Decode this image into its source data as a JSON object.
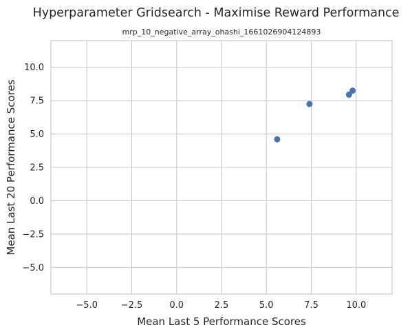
{
  "figure": {
    "suptitle": "Hyperparameter Gridsearch - Maximise Reward Performance"
  },
  "chart_data": {
    "type": "scatter",
    "title": "Hyperparameter Gridsearch - Maximise Reward Performance",
    "subtitle": "mrp_10_negative_array_ohashi_1661026904124893",
    "xlabel": "Mean Last 5 Performance Scores",
    "ylabel": "Mean Last 20 Performance Scores",
    "xlim": [
      -7.0,
      12.0
    ],
    "ylim": [
      -7.0,
      12.0
    ],
    "x_ticks": [
      -5.0,
      -2.5,
      0.0,
      2.5,
      5.0,
      7.5,
      10.0
    ],
    "x_tick_labels": [
      "−5.0",
      "−2.5",
      "0.0",
      "2.5",
      "5.0",
      "7.5",
      "10.0"
    ],
    "y_ticks": [
      -5.0,
      -2.5,
      0.0,
      2.5,
      5.0,
      7.5,
      10.0
    ],
    "y_tick_labels": [
      "−5.0",
      "−2.5",
      "0.0",
      "2.5",
      "5.0",
      "7.5",
      "10.0"
    ],
    "grid": true,
    "legend": null,
    "color": "#4c72b0",
    "points": [
      {
        "x": 5.6,
        "y": 4.6
      },
      {
        "x": 7.4,
        "y": 7.25
      },
      {
        "x": 9.6,
        "y": 7.95
      },
      {
        "x": 9.8,
        "y": 8.25
      }
    ]
  }
}
